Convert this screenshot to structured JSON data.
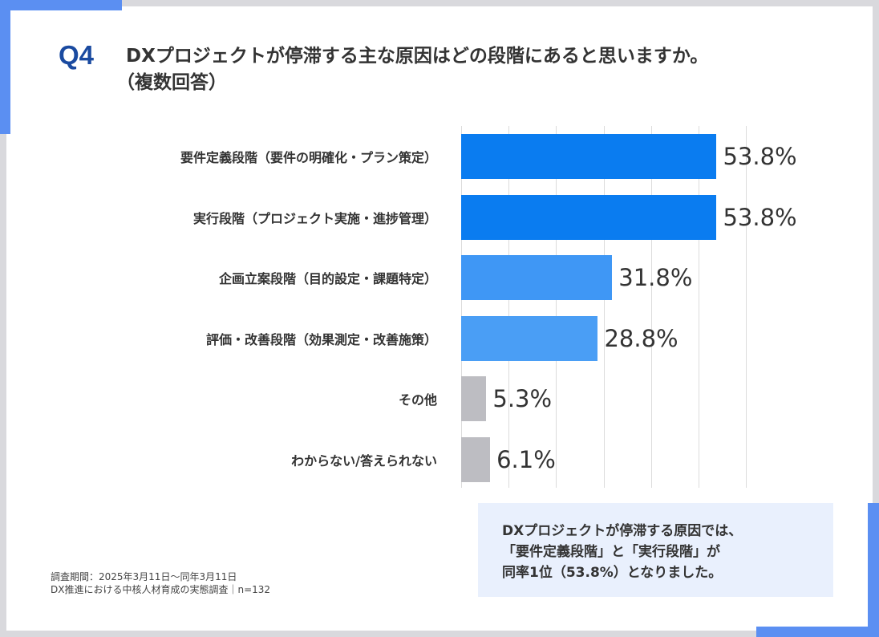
{
  "header": {
    "question_number": "Q4",
    "title": "DXプロジェクトが停滞する主な原因はどの段階にあると思いますか。",
    "subtitle": "（複数回答）"
  },
  "chart_data": {
    "type": "bar",
    "orientation": "horizontal",
    "categories": [
      "要件定義段階（要件の明確化・プラン策定）",
      "実行段階（プロジェクト実施・進捗管理）",
      "企画立案段階（目的設定・課題特定）",
      "評価・改善段階（効果測定・改善施策）",
      "その他",
      "わからない/答えられない"
    ],
    "values": [
      53.8,
      53.8,
      31.8,
      28.8,
      5.3,
      6.1
    ],
    "value_labels": [
      "53.8%",
      "53.8%",
      "31.8%",
      "28.8%",
      "5.3%",
      "6.1%"
    ],
    "colors": [
      "#0a7cf0",
      "#0a7cf0",
      "#3f97f5",
      "#4a9ef5",
      "#bdbdc2",
      "#bdbdc2"
    ],
    "xlim": [
      0,
      60
    ],
    "grid": true,
    "title": "",
    "xlabel": "",
    "ylabel": ""
  },
  "summary": {
    "lines": [
      "DXプロジェクトが停滞する原因では、",
      "「要件定義段階」と「実行段階」が",
      "同率1位（53.8%）となりました。"
    ]
  },
  "footnote": {
    "period": "調査期間：2025年3月11日～同年3月11日",
    "survey": "DX推進における中核人材育成の実態調査｜n=132"
  },
  "colors": {
    "accent": "#5b8ff2",
    "q_color": "#1a4aa0",
    "summary_bg": "#e9f0fd"
  }
}
